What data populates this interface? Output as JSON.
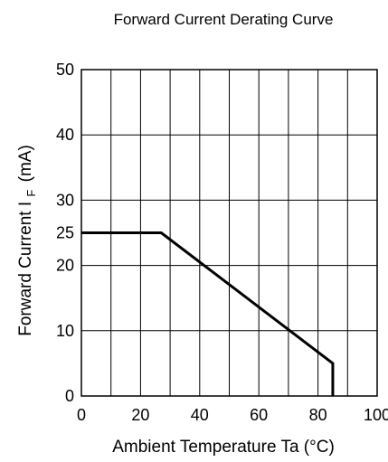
{
  "chart_data": {
    "type": "line",
    "title": "Forward Current Derating Curve",
    "xlabel": "Ambient Temperature Ta (°C)",
    "ylabel_main": "Forward Current",
    "ylabel_symbol": "I",
    "ylabel_subscript": "F",
    "ylabel_unit": "(mA)",
    "xlim": [
      0,
      100
    ],
    "ylim": [
      0,
      50
    ],
    "x_ticks": [
      0,
      20,
      40,
      60,
      80,
      100
    ],
    "y_ticks": [
      0,
      10,
      20,
      25,
      30,
      40,
      50
    ],
    "x_grid": [
      0,
      10,
      20,
      30,
      40,
      50,
      60,
      70,
      80,
      90,
      100
    ],
    "y_grid": [
      0,
      10,
      20,
      30,
      40,
      50
    ],
    "grid": true,
    "legend": "none",
    "series": [
      {
        "points": [
          [
            0,
            25
          ],
          [
            27,
            25
          ],
          [
            85,
            5
          ],
          [
            85,
            0
          ]
        ]
      }
    ]
  }
}
